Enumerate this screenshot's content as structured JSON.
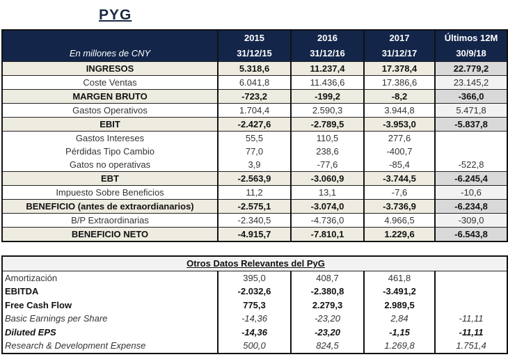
{
  "title": "PYG",
  "header": {
    "unit_label": "En millones de CNY",
    "years": [
      "2015",
      "2016",
      "2017",
      "Últimos 12M"
    ],
    "dates": [
      "31/12/15",
      "31/12/16",
      "31/12/17",
      "30/9/18"
    ]
  },
  "rows": [
    {
      "label": "INGRESOS",
      "values": [
        "5.318,6",
        "11.237,4",
        "17.378,4",
        "22.779,2"
      ],
      "style": "bold"
    },
    {
      "label": "Coste Ventas",
      "values": [
        "6.041,8",
        "11.436,6",
        "17.386,6",
        "23.145,2"
      ],
      "style": "norm"
    },
    {
      "label": "MARGEN BRUTO",
      "values": [
        "-723,2",
        "-199,2",
        "-8,2",
        "-366,0"
      ],
      "style": "bold"
    },
    {
      "label": "Gastos Operativos",
      "values": [
        "1.704,4",
        "2.590,3",
        "3.944,8",
        "5.471,8"
      ],
      "style": "norm"
    },
    {
      "label": "EBIT",
      "values": [
        "-2.427,6",
        "-2.789,5",
        "-3.953,0",
        "-5.837,8"
      ],
      "style": "bold"
    },
    {
      "label": "Gastos Intereses",
      "values": [
        "55,5",
        "110,5",
        "277,6",
        ""
      ],
      "style": "grp"
    },
    {
      "label": "Pérdidas Tipo Cambio",
      "values": [
        "77,0",
        "238,6",
        "-400,7",
        ""
      ],
      "style": "grp"
    },
    {
      "label": "Gatos no operativas",
      "values": [
        "3,9",
        "-77,6",
        "-85,4",
        "-522,8"
      ],
      "style": "grp end"
    },
    {
      "label": "EBT",
      "values": [
        "-2.563,9",
        "-3.060,9",
        "-3.744,5",
        "-6.245,4"
      ],
      "style": "bold"
    },
    {
      "label": "Impuesto Sobre Beneficios",
      "values": [
        "11,2",
        "13,1",
        "-7,6",
        "-10,6"
      ],
      "style": "norm"
    },
    {
      "label": "BENEFICIO (antes de extraordianarios)",
      "values": [
        "-2.575,1",
        "-3.074,0",
        "-3.736,9",
        "-6.234,8"
      ],
      "style": "bold"
    },
    {
      "label": "B/P Extraordinarias",
      "values": [
        "-2.340,5",
        "-4.736,0",
        "4.966,5",
        "-309,0"
      ],
      "style": "norm"
    },
    {
      "label": "BENEFICIO NETO",
      "values": [
        "-4.915,7",
        "-7.810,1",
        "1.229,6",
        "-6.543,8"
      ],
      "style": "bold"
    }
  ],
  "other": {
    "title": "Otros Datos Relevantes del PyG",
    "rows": [
      {
        "label": "Amortización",
        "values": [
          "395,0",
          "408,7",
          "461,8",
          ""
        ],
        "style": "n2"
      },
      {
        "label": "EBITDA",
        "values": [
          "-2.032,6",
          "-2.380,8",
          "-3.491,2",
          ""
        ],
        "style": "b2"
      },
      {
        "label": "Free Cash Flow",
        "values": [
          "775,3",
          "2.279,3",
          "2.989,5",
          ""
        ],
        "style": "b2"
      },
      {
        "label": "Basic Earnings per Share",
        "values": [
          "-14,36",
          "-23,20",
          "2,84",
          "-11,11"
        ],
        "style": "i2"
      },
      {
        "label": "Diluted EPS",
        "values": [
          "-14,36",
          "-23,20",
          "-1,15",
          "-11,11"
        ],
        "style": "bi2"
      },
      {
        "label": "Research & Development Expense",
        "values": [
          "500,0",
          "824,5",
          "1.269,8",
          "1.751,4"
        ],
        "style": "i2"
      }
    ]
  }
}
